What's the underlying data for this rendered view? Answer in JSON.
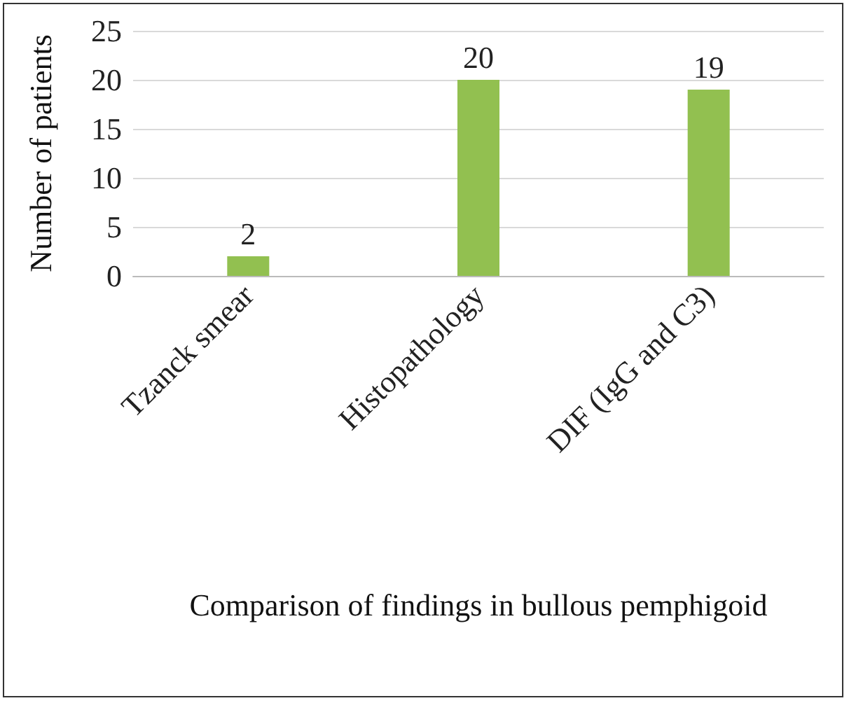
{
  "chart_data": {
    "type": "bar",
    "xlabel": "Comparison of findings in bullous pemphigoid",
    "ylabel": "Number of patients",
    "categories": [
      "Tzanck smear",
      "Histopathology",
      "DIF (IgG and C3)"
    ],
    "values": [
      2,
      20,
      19
    ],
    "color": "#92c050",
    "ylim": [
      0,
      25
    ],
    "yticks": [
      0,
      5,
      10,
      15,
      20,
      25
    ],
    "grid": "y",
    "data_labels": true
  }
}
